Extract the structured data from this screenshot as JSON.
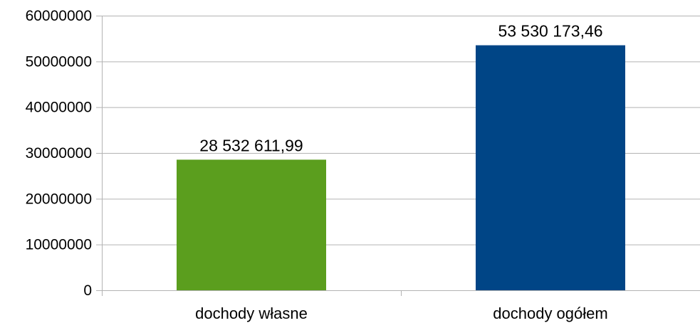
{
  "chart_data": {
    "type": "bar",
    "title": "",
    "xlabel": "",
    "ylabel": "",
    "categories": [
      "dochody własne",
      "dochody ogółem"
    ],
    "values": [
      28532611.99,
      53530173.46
    ],
    "data_labels": [
      "28 532 611,99",
      "53 530 173,46"
    ],
    "colors": [
      "#5b9e1e",
      "#004586"
    ],
    "ylim": [
      0,
      60000000
    ],
    "yticks": [
      0,
      10000000,
      20000000,
      30000000,
      40000000,
      50000000,
      60000000
    ],
    "ytick_labels": [
      "0",
      "10000000",
      "20000000",
      "30000000",
      "40000000",
      "50000000",
      "60000000"
    ],
    "grid": true,
    "legend": "none"
  }
}
